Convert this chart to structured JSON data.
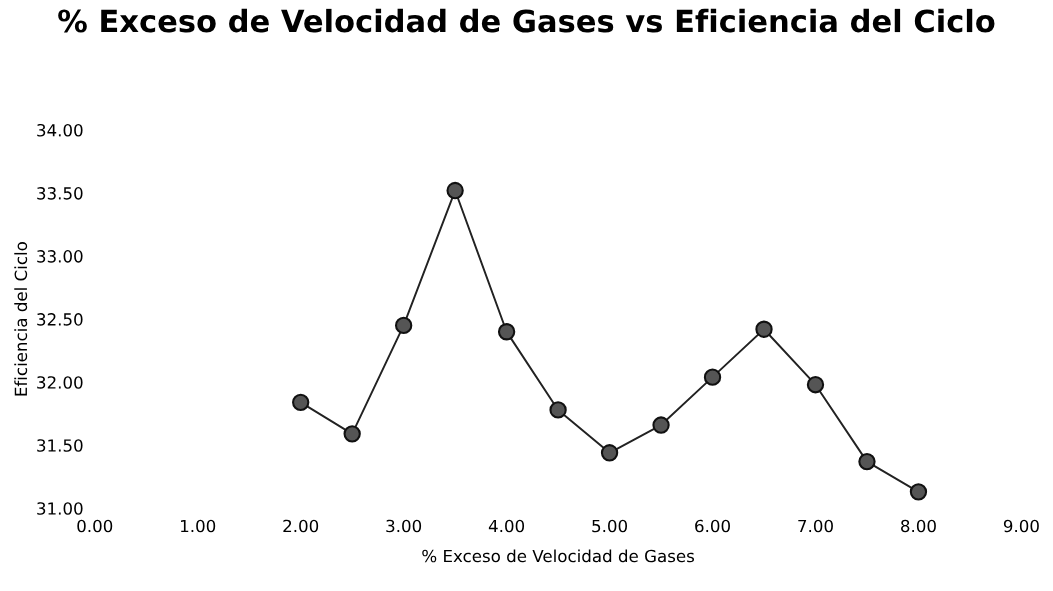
{
  "chart_data": {
    "type": "line",
    "title": "% Exceso de Velocidad de Gases vs Eficiencia del Ciclo",
    "xlabel": "% Exceso de Velocidad de Gases",
    "ylabel": "Eficiencia del Ciclo",
    "x": [
      2.0,
      2.5,
      3.0,
      3.5,
      4.0,
      4.5,
      5.0,
      5.5,
      6.0,
      6.5,
      7.0,
      7.5,
      8.0
    ],
    "series": [
      {
        "color": "#555555",
        "values": [
          31.84,
          31.59,
          32.45,
          33.52,
          32.4,
          31.78,
          31.44,
          31.66,
          32.04,
          32.42,
          31.98,
          31.37,
          31.13
        ]
      }
    ],
    "xlim": [
      0,
      9
    ],
    "xticks": [
      {
        "value": 0,
        "label": "0.00"
      },
      {
        "value": 1,
        "label": "1.00"
      },
      {
        "value": 2,
        "label": "2.00"
      },
      {
        "value": 3,
        "label": "3.00"
      },
      {
        "value": 4,
        "label": "4.00"
      },
      {
        "value": 5,
        "label": "5.00"
      },
      {
        "value": 6,
        "label": "6.00"
      },
      {
        "value": 7,
        "label": "7.00"
      },
      {
        "value": 8,
        "label": "8.00"
      },
      {
        "value": 9,
        "label": "9.00"
      }
    ],
    "ylim": [
      31,
      34
    ],
    "yticks": [
      {
        "value": 31,
        "label": "31.00"
      },
      {
        "value": 31.5,
        "label": "31.50"
      },
      {
        "value": 32,
        "label": "32.00"
      },
      {
        "value": 32.5,
        "label": "32.50"
      },
      {
        "value": 33,
        "label": "33.00"
      },
      {
        "value": 33.5,
        "label": "33.50"
      },
      {
        "value": 34,
        "label": "34.00"
      }
    ],
    "marker": "circle",
    "line_style": "solid"
  }
}
